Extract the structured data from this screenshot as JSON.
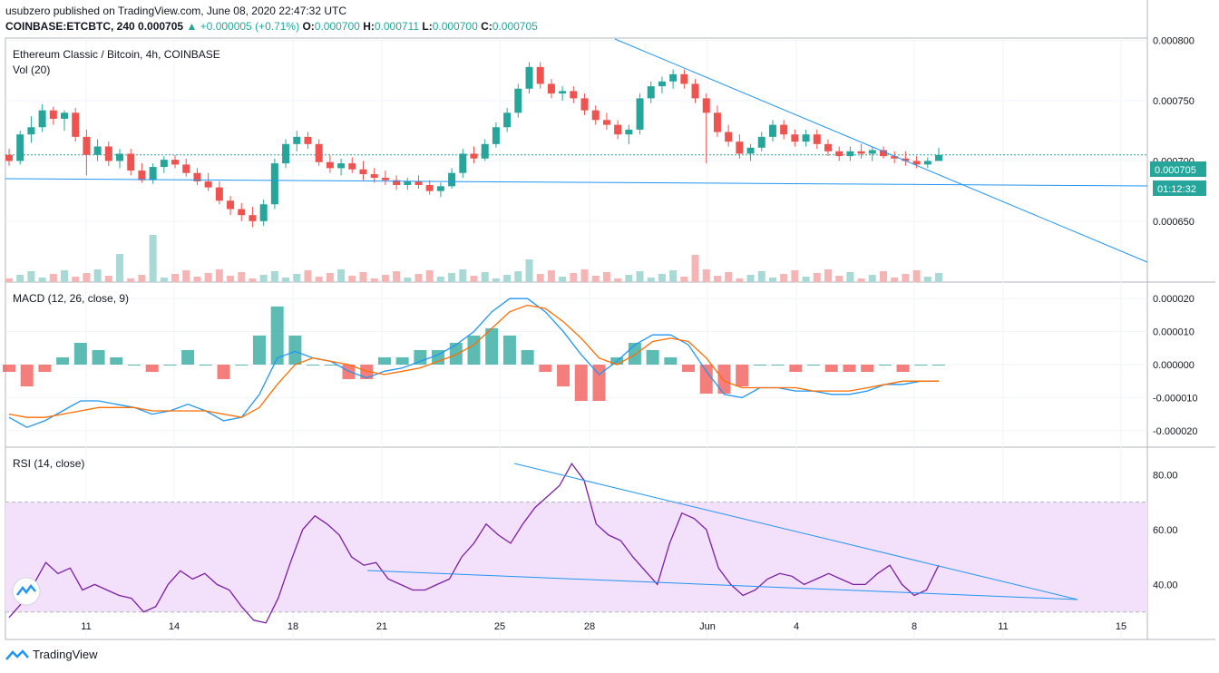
{
  "header": {
    "publisher": "usubzero published on TradingView.com, June 08, 2020 22:47:32 UTC",
    "symbol": "COINBASE:ETCBTC, 240",
    "last": "0.000705",
    "change": "+0.000005 (+0.71%)",
    "o_label": "O:",
    "o_value": "0.000700",
    "h_label": "H:",
    "h_value": "0.000711",
    "l_label": "L:",
    "l_value": "0.000700",
    "c_label": "C:",
    "c_value": "0.000705"
  },
  "panes": {
    "price_title": "Ethereum Classic / Bitcoin, 4h, COINBASE",
    "volume_title": "Vol (20)",
    "macd_title": "MACD (12, 26, close, 9)",
    "rsi_title": "RSI (14, close)"
  },
  "price_tag": {
    "value": "0.000705",
    "countdown": "01:12:32"
  },
  "footer": {
    "brand": "TradingView"
  },
  "colors": {
    "up": "#26a69a",
    "down": "#ef5350",
    "trendline": "#2196f3",
    "macd_line": "#2196f3",
    "signal_line": "#ff6d00",
    "rsi_line": "#7b1fa2",
    "rsi_band": "#f3e0fb"
  },
  "chart_data": [
    {
      "type": "candlestick",
      "title": "Ethereum Classic / Bitcoin, 4h, COINBASE",
      "x_ticks": [
        "11",
        "14",
        "18",
        "21",
        "25",
        "28",
        "Jun",
        "4",
        "8",
        "11",
        "15"
      ],
      "y_ticks": [
        "0.000800",
        "0.000750",
        "0.000700",
        "0.000650"
      ],
      "ylim": [
        0.000622,
        0.000802
      ],
      "current_price": 0.000705,
      "ohlc_estimated": [
        [
          0.000705,
          0.00071,
          0.000696,
          0.0007
        ],
        [
          0.0007,
          0.000725,
          0.000697,
          0.000722
        ],
        [
          0.000722,
          0.000737,
          0.000715,
          0.000728
        ],
        [
          0.000728,
          0.000747,
          0.000724,
          0.000742
        ],
        [
          0.000742,
          0.000745,
          0.00073,
          0.000735
        ],
        [
          0.000735,
          0.000742,
          0.000725,
          0.00074
        ],
        [
          0.00074,
          0.000744,
          0.000716,
          0.00072
        ],
        [
          0.00072,
          0.000726,
          0.000688,
          0.000705
        ],
        [
          0.000705,
          0.000718,
          0.0007,
          0.000712
        ],
        [
          0.000712,
          0.000716,
          0.000696,
          0.0007
        ],
        [
          0.0007,
          0.00071,
          0.000694,
          0.000706
        ],
        [
          0.000706,
          0.00071,
          0.000688,
          0.000692
        ],
        [
          0.000692,
          0.000698,
          0.000682,
          0.000684
        ],
        [
          0.000684,
          0.000698,
          0.000681,
          0.000695
        ],
        [
          0.000695,
          0.000704,
          0.00069,
          0.000701
        ],
        [
          0.000701,
          0.000705,
          0.000694,
          0.000697
        ],
        [
          0.000697,
          0.000702,
          0.000687,
          0.00069
        ],
        [
          0.00069,
          0.000694,
          0.00068,
          0.000683
        ],
        [
          0.000683,
          0.00069,
          0.000675,
          0.000678
        ],
        [
          0.000678,
          0.000683,
          0.000664,
          0.000667
        ],
        [
          0.000667,
          0.000671,
          0.000655,
          0.00066
        ],
        [
          0.00066,
          0.000665,
          0.00065,
          0.000655
        ],
        [
          0.000655,
          0.000662,
          0.000645,
          0.00065
        ],
        [
          0.00065,
          0.000668,
          0.000646,
          0.000664
        ],
        [
          0.000664,
          0.000702,
          0.00066,
          0.000698
        ],
        [
          0.000698,
          0.000718,
          0.000694,
          0.000714
        ],
        [
          0.000714,
          0.000725,
          0.000708,
          0.00072
        ],
        [
          0.00072,
          0.000724,
          0.00071,
          0.000714
        ],
        [
          0.000714,
          0.000718,
          0.000696,
          0.000699
        ],
        [
          0.000699,
          0.000705,
          0.00069,
          0.000694
        ],
        [
          0.000694,
          0.000702,
          0.000688,
          0.000698
        ],
        [
          0.000698,
          0.000703,
          0.00069,
          0.000693
        ],
        [
          0.000693,
          0.0007,
          0.000684,
          0.000689
        ],
        [
          0.000689,
          0.000694,
          0.000682,
          0.000686
        ],
        [
          0.000686,
          0.000692,
          0.00068,
          0.000684
        ],
        [
          0.000684,
          0.000688,
          0.000676,
          0.00068
        ],
        [
          0.00068,
          0.000686,
          0.000676,
          0.000683
        ],
        [
          0.000683,
          0.000688,
          0.000677,
          0.00068
        ],
        [
          0.00068,
          0.000684,
          0.000672,
          0.000675
        ],
        [
          0.000675,
          0.000682,
          0.00067,
          0.000679
        ],
        [
          0.000679,
          0.000694,
          0.000677,
          0.00069
        ],
        [
          0.00069,
          0.00071,
          0.000686,
          0.000706
        ],
        [
          0.000706,
          0.000712,
          0.000698,
          0.000702
        ],
        [
          0.000702,
          0.000718,
          0.0007,
          0.000714
        ],
        [
          0.000714,
          0.000732,
          0.000711,
          0.000728
        ],
        [
          0.000728,
          0.000744,
          0.000724,
          0.00074
        ],
        [
          0.00074,
          0.000764,
          0.000736,
          0.00076
        ],
        [
          0.00076,
          0.000782,
          0.000756,
          0.000778
        ],
        [
          0.000778,
          0.000782,
          0.00076,
          0.000764
        ],
        [
          0.000764,
          0.000768,
          0.000752,
          0.000756
        ],
        [
          0.000756,
          0.000762,
          0.00075,
          0.000758
        ],
        [
          0.000758,
          0.000762,
          0.000748,
          0.000752
        ],
        [
          0.000752,
          0.000756,
          0.000738,
          0.000742
        ],
        [
          0.000742,
          0.000746,
          0.00073,
          0.000734
        ],
        [
          0.000734,
          0.00074,
          0.000726,
          0.00073
        ],
        [
          0.00073,
          0.000734,
          0.000718,
          0.000722
        ],
        [
          0.000722,
          0.00073,
          0.000714,
          0.000726
        ],
        [
          0.000726,
          0.000756,
          0.000722,
          0.000752
        ],
        [
          0.000752,
          0.000766,
          0.000748,
          0.000762
        ],
        [
          0.000762,
          0.00077,
          0.000756,
          0.000766
        ],
        [
          0.000766,
          0.000776,
          0.00076,
          0.000772
        ],
        [
          0.000772,
          0.000776,
          0.00076,
          0.000764
        ],
        [
          0.000764,
          0.000768,
          0.000748,
          0.000752
        ],
        [
          0.000752,
          0.000756,
          0.000698,
          0.00074
        ],
        [
          0.00074,
          0.000746,
          0.00072,
          0.000724
        ],
        [
          0.000724,
          0.00073,
          0.000712,
          0.000716
        ],
        [
          0.000716,
          0.000722,
          0.000702,
          0.000706
        ],
        [
          0.000706,
          0.000714,
          0.0007,
          0.000711
        ],
        [
          0.000711,
          0.000724,
          0.000708,
          0.00072
        ],
        [
          0.00072,
          0.000734,
          0.000716,
          0.00073
        ],
        [
          0.00073,
          0.000734,
          0.000718,
          0.000722
        ],
        [
          0.000722,
          0.000726,
          0.000712,
          0.000716
        ],
        [
          0.000716,
          0.000726,
          0.000712,
          0.000722
        ],
        [
          0.000722,
          0.000726,
          0.00071,
          0.000714
        ],
        [
          0.000714,
          0.000718,
          0.000704,
          0.000708
        ],
        [
          0.000708,
          0.000712,
          0.0007,
          0.000704
        ],
        [
          0.000704,
          0.000712,
          0.0007,
          0.000708
        ],
        [
          0.000708,
          0.000714,
          0.000702,
          0.000706
        ],
        [
          0.000706,
          0.000712,
          0.0007,
          0.000709
        ],
        [
          0.000709,
          0.000712,
          0.000702,
          0.000704
        ],
        [
          0.000704,
          0.000708,
          0.000698,
          0.000702
        ],
        [
          0.000702,
          0.000708,
          0.000696,
          0.0007
        ],
        [
          0.0007,
          0.000704,
          0.000694,
          0.000697
        ],
        [
          0.000697,
          0.000703,
          0.000694,
          0.0007
        ],
        [
          0.0007,
          0.000711,
          0.0007,
          0.000705
        ]
      ]
    },
    {
      "type": "histogram",
      "title": "Vol (20)",
      "note": "volume bars at bottom of price pane"
    },
    {
      "type": "line",
      "title": "MACD (12, 26, close, 9)",
      "y_ticks": [
        "0.000020",
        "0.000010",
        "0.000000",
        "-0.000010",
        "-0.000020"
      ],
      "ylim": [
        -2.5e-05,
        2.5e-05
      ],
      "series": [
        {
          "values": [
            -1.6e-05,
            -1.9e-05,
            -1.7e-05,
            -1.4e-05,
            -1.1e-05,
            -1.1e-05,
            -1.2e-05,
            -1.3e-05,
            -1.5e-05,
            -1.4e-05,
            -1.2e-05,
            -1.4e-05,
            -1.7e-05,
            -1.6e-05,
            -9e-06,
            2e-06,
            4e-06,
            2e-06,
            1e-06,
            -2e-06,
            -4e-06,
            -2e-06,
            -1e-06,
            1e-06,
            3e-06,
            6e-06,
            1e-05,
            1.6e-05,
            2e-05,
            2e-05,
            1.6e-05,
            1e-05,
            3e-06,
            -3e-06,
            1e-06,
            6e-06,
            9e-06,
            9e-06,
            6e-06,
            -2e-06,
            -9e-06,
            -1e-05,
            -7e-06,
            -7e-06,
            -8e-06,
            -8e-06,
            -9e-06,
            -9e-06,
            -8e-06,
            -6e-06,
            -6e-06,
            -5e-06,
            -5e-06
          ]
        },
        {
          "values": [
            -1.5e-05,
            -1.6e-05,
            -1.6e-05,
            -1.5e-05,
            -1.4e-05,
            -1.3e-05,
            -1.3e-05,
            -1.3e-05,
            -1.4e-05,
            -1.4e-05,
            -1.4e-05,
            -1.4e-05,
            -1.5e-05,
            -1.6e-05,
            -1.3e-05,
            -6e-06,
            0.0,
            2e-06,
            1e-06,
            0.0,
            -2e-06,
            -3e-06,
            -2e-06,
            -1e-06,
            1e-06,
            3e-06,
            6e-06,
            1.1e-05,
            1.6e-05,
            1.8e-05,
            1.7e-05,
            1.3e-05,
            8e-06,
            2e-06,
            0.0,
            3e-06,
            7e-06,
            8e-06,
            7e-06,
            2e-06,
            -5e-06,
            -7e-06,
            -7e-06,
            -7e-06,
            -7e-06,
            -8e-06,
            -8e-06,
            -8e-06,
            -7e-06,
            -6e-06,
            -5e-06,
            -5e-06,
            -5e-06
          ]
        }
      ]
    },
    {
      "type": "line",
      "title": "RSI (14, close)",
      "y_ticks": [
        "80.00",
        "60.00",
        "40.00"
      ],
      "ylim": [
        20,
        90
      ],
      "bands": [
        30,
        70
      ],
      "series": [
        {
          "values": [
            28,
            33,
            40,
            48,
            44,
            46,
            38,
            40,
            38,
            36,
            35,
            30,
            32,
            40,
            45,
            42,
            44,
            40,
            38,
            32,
            27,
            26,
            35,
            48,
            60,
            65,
            62,
            58,
            50,
            47,
            48,
            42,
            40,
            38,
            38,
            40,
            42,
            50,
            55,
            62,
            58,
            55,
            62,
            68,
            72,
            76,
            84,
            78,
            62,
            58,
            56,
            50,
            45,
            40,
            55,
            66,
            64,
            60,
            46,
            40,
            36,
            38,
            42,
            44,
            43,
            40,
            42,
            44,
            42,
            40,
            40,
            44,
            47,
            40,
            36,
            38,
            47
          ]
        }
      ]
    }
  ]
}
